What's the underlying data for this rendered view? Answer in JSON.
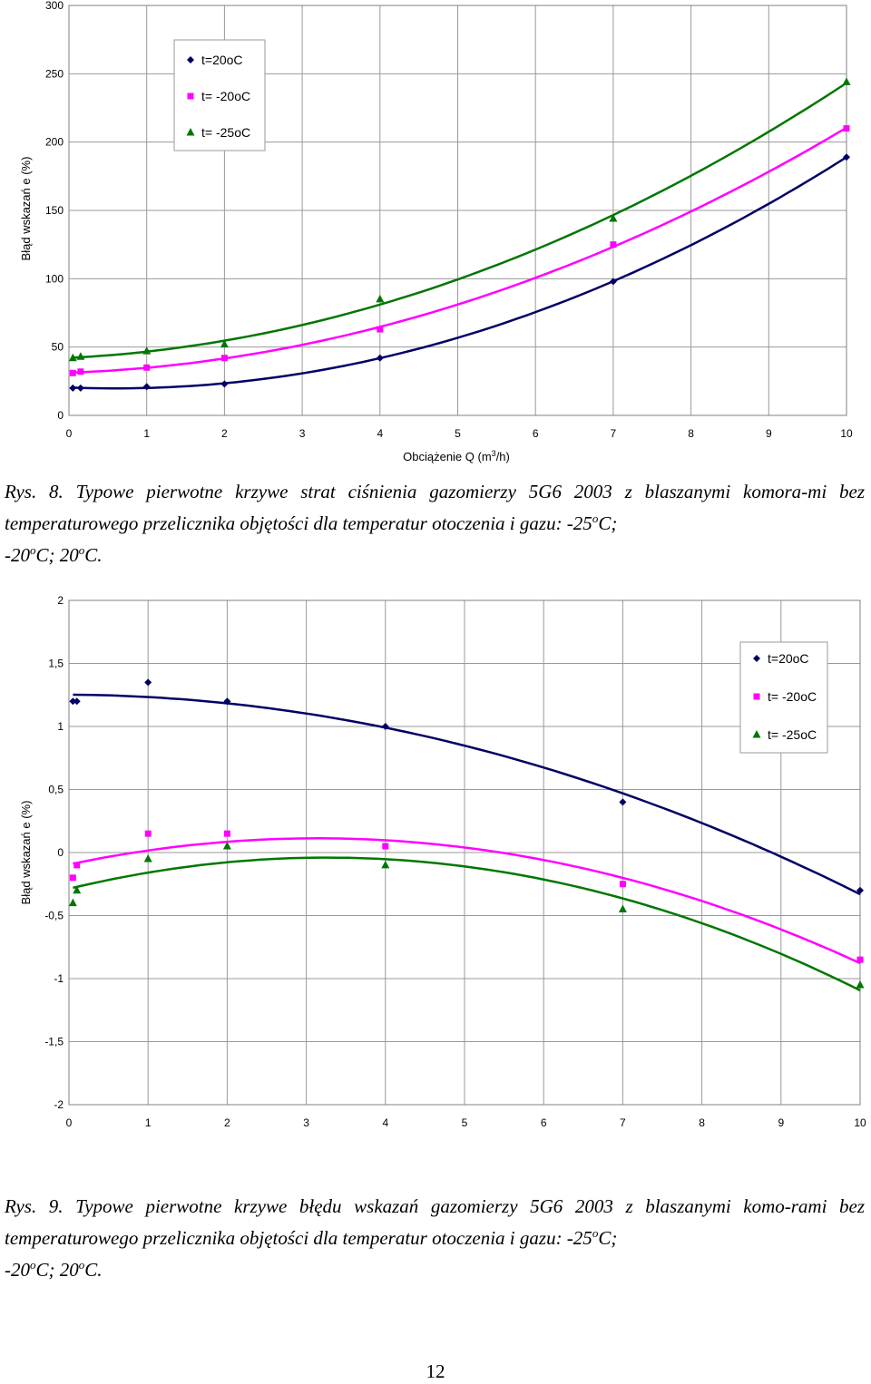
{
  "chart_data": [
    {
      "type": "scatter",
      "xlabel": "Obciążenie Q (m3/h)",
      "ylabel": "Błąd wskazań e (%)",
      "xlim": [
        0,
        10
      ],
      "ylim": [
        0,
        300
      ],
      "x_ticks": [
        "0",
        "1",
        "2",
        "3",
        "4",
        "5",
        "6",
        "7",
        "8",
        "9",
        "10"
      ],
      "y_ticks": [
        "0",
        "50",
        "100",
        "150",
        "200",
        "250",
        "300"
      ],
      "grid": true,
      "legend_position": "top-left",
      "series": [
        {
          "name": "t=20oC",
          "color": "#000066",
          "marker": "diamond",
          "x": [
            0.05,
            0.15,
            1,
            2,
            4,
            7,
            10
          ],
          "y": [
            20,
            20,
            21,
            23,
            42,
            98,
            189
          ],
          "trend": [
            0.05,
            0.15,
            1,
            2,
            4,
            7,
            10
          ]
        },
        {
          "name": "t= -20oC",
          "color": "#ff00ff",
          "marker": "square",
          "x": [
            0.05,
            0.15,
            1,
            2,
            4,
            7,
            10
          ],
          "y": [
            31,
            32,
            35,
            42,
            63,
            125,
            210
          ],
          "trend": [
            0.05,
            0.15,
            1,
            2,
            4,
            7,
            10
          ]
        },
        {
          "name": "t= -25oC",
          "color": "#007700",
          "marker": "triangle",
          "x": [
            0.05,
            0.15,
            1,
            2,
            4,
            7,
            10
          ],
          "y": [
            42,
            43,
            47,
            52,
            85,
            144,
            244
          ],
          "trend": [
            0.05,
            0.15,
            1,
            2,
            4,
            7,
            10
          ]
        }
      ]
    },
    {
      "type": "scatter",
      "xlabel": "Obciążenie Q (m3/h)",
      "ylabel": "Błąd wskazań e (%)",
      "xlim": [
        0,
        10
      ],
      "ylim": [
        -2,
        2
      ],
      "x_ticks": [
        "0",
        "1",
        "2",
        "3",
        "4",
        "5",
        "6",
        "7",
        "8",
        "9",
        "10"
      ],
      "y_ticks": [
        "-2",
        "-1,5",
        "-1",
        "-0,5",
        "0",
        "0,5",
        "1",
        "1,5",
        "2"
      ],
      "grid": true,
      "legend_position": "top-right",
      "series": [
        {
          "name": "t=20oC",
          "color": "#000066",
          "marker": "diamond",
          "x": [
            0.05,
            0.1,
            1,
            2,
            4,
            7,
            10
          ],
          "y": [
            1.2,
            1.2,
            1.35,
            1.2,
            1.0,
            0.4,
            -0.3
          ],
          "trend": [
            0.05,
            1,
            2,
            3,
            4,
            5,
            6,
            7,
            8,
            9,
            10
          ]
        },
        {
          "name": "t= -20oC",
          "color": "#ff00ff",
          "marker": "square",
          "x": [
            0.05,
            0.1,
            1,
            2,
            4,
            7,
            10
          ],
          "y": [
            -0.2,
            -0.1,
            0.15,
            0.15,
            0.05,
            -0.25,
            -0.85
          ],
          "trend": [
            0.05,
            1,
            2,
            3,
            4,
            5,
            6,
            7,
            8,
            9,
            10
          ]
        },
        {
          "name": "t= -25oC",
          "color": "#007700",
          "marker": "triangle",
          "x": [
            0.05,
            0.1,
            1,
            2,
            4,
            7,
            10
          ],
          "y": [
            -0.4,
            -0.3,
            -0.05,
            0.05,
            -0.1,
            -0.45,
            -1.05
          ],
          "trend": [
            0.05,
            1,
            2,
            3,
            4,
            5,
            6,
            7,
            8,
            9,
            10
          ]
        }
      ]
    }
  ],
  "captions": {
    "fig8": {
      "head": "Rys. 8. Typowe pierwotne krzywe strat ciśnienia gazomierzy 5G6 2003 z blaszanymi komora-mi bez temperaturowego przelicznika objętości dla temperatur otoczenia i gazu: -25",
      "sup": "o",
      "unit": "C;",
      "line2_a": " -20",
      "line2_b": "C; 20",
      "line2_end": "C."
    },
    "fig9": {
      "head": "Rys. 9. Typowe pierwotne krzywe błędu wskazań gazomierzy 5G6 2003 z blaszanymi komo-rami bez temperaturowego przelicznika objętości dla temperatur otoczenia i gazu: -25",
      "sup": "o",
      "unit": "C;",
      "line2_a": "-20",
      "line2_b": "C; 20",
      "line2_end": "C."
    }
  },
  "page_number": "12"
}
